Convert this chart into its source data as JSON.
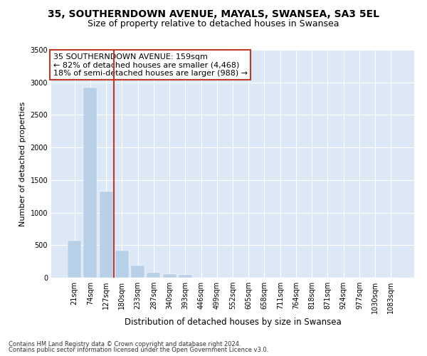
{
  "title": "35, SOUTHERNDOWN AVENUE, MAYALS, SWANSEA, SA3 5EL",
  "subtitle": "Size of property relative to detached houses in Swansea",
  "xlabel": "Distribution of detached houses by size in Swansea",
  "ylabel": "Number of detached properties",
  "footer_line1": "Contains HM Land Registry data © Crown copyright and database right 2024.",
  "footer_line2": "Contains public sector information licensed under the Open Government Licence v3.0.",
  "annotation_line1": "35 SOUTHERNDOWN AVENUE: 159sqm",
  "annotation_line2": "← 82% of detached houses are smaller (4,468)",
  "annotation_line3": "18% of semi-detached houses are larger (988) →",
  "categories": [
    "21sqm",
    "74sqm",
    "127sqm",
    "180sqm",
    "233sqm",
    "287sqm",
    "340sqm",
    "393sqm",
    "446sqm",
    "499sqm",
    "552sqm",
    "605sqm",
    "658sqm",
    "711sqm",
    "764sqm",
    "818sqm",
    "871sqm",
    "924sqm",
    "977sqm",
    "1030sqm",
    "1083sqm"
  ],
  "values": [
    570,
    2920,
    1320,
    415,
    185,
    75,
    50,
    42,
    0,
    0,
    0,
    0,
    0,
    0,
    0,
    0,
    0,
    0,
    0,
    0,
    0
  ],
  "bar_color": "#b8cfe8",
  "vline_color": "#c0392b",
  "vline_position": 2.5,
  "ylim": [
    0,
    3500
  ],
  "yticks": [
    0,
    500,
    1000,
    1500,
    2000,
    2500,
    3000,
    3500
  ],
  "bg_color": "#dce8f5",
  "fig_bg_color": "#ffffff",
  "grid_color": "#ffffff",
  "title_fontsize": 10,
  "subtitle_fontsize": 9,
  "annotation_fontsize": 8,
  "tick_fontsize": 7,
  "ylabel_fontsize": 8,
  "xlabel_fontsize": 8.5,
  "footer_fontsize": 6
}
